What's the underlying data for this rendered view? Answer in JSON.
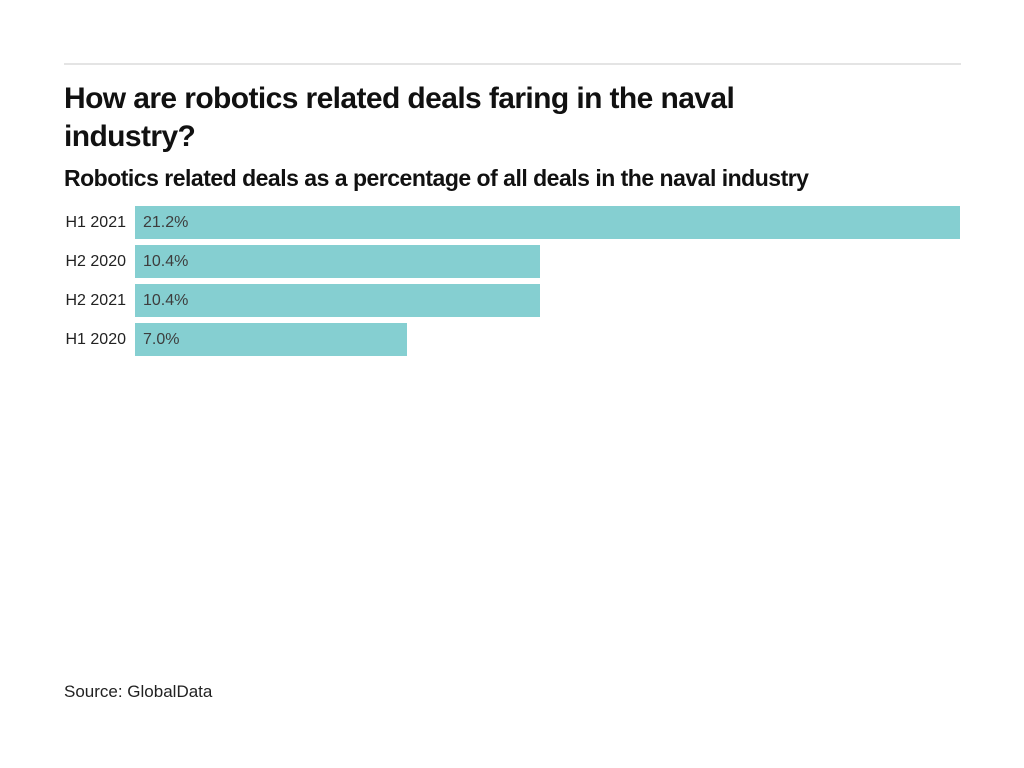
{
  "header": {
    "title": "How are robotics related deals faring in the naval industry?",
    "title_lines": [
      "How are robotics related deals faring in the naval",
      "industry?"
    ],
    "subtitle": "Robotics related deals as a percentage of all deals in the naval industry"
  },
  "footer": {
    "source": "Source: GlobalData"
  },
  "colors": {
    "background": "#ffffff",
    "bar": "#85cfd1",
    "title": "#111111",
    "text": "#222222",
    "value": "#3d3d3d",
    "divider": "#e4e4e4"
  },
  "chart_data": {
    "type": "bar",
    "orientation": "horizontal",
    "title": "How are robotics related deals faring in the naval industry?",
    "subtitle": "Robotics related deals as a percentage of all deals in the naval industry",
    "categories": [
      "H1 2021",
      "H2 2020",
      "H2 2021",
      "H1 2020"
    ],
    "values": [
      21.2,
      10.4,
      10.4,
      7.0
    ],
    "value_labels": [
      "21.2%",
      "10.4%",
      "10.4%",
      "7.0%"
    ],
    "unit": "%",
    "xlim": [
      0,
      21.2
    ],
    "grid": false,
    "legend": false,
    "value_label_position": "inside-start",
    "category_label_position": "left",
    "source": "Source: GlobalData"
  }
}
